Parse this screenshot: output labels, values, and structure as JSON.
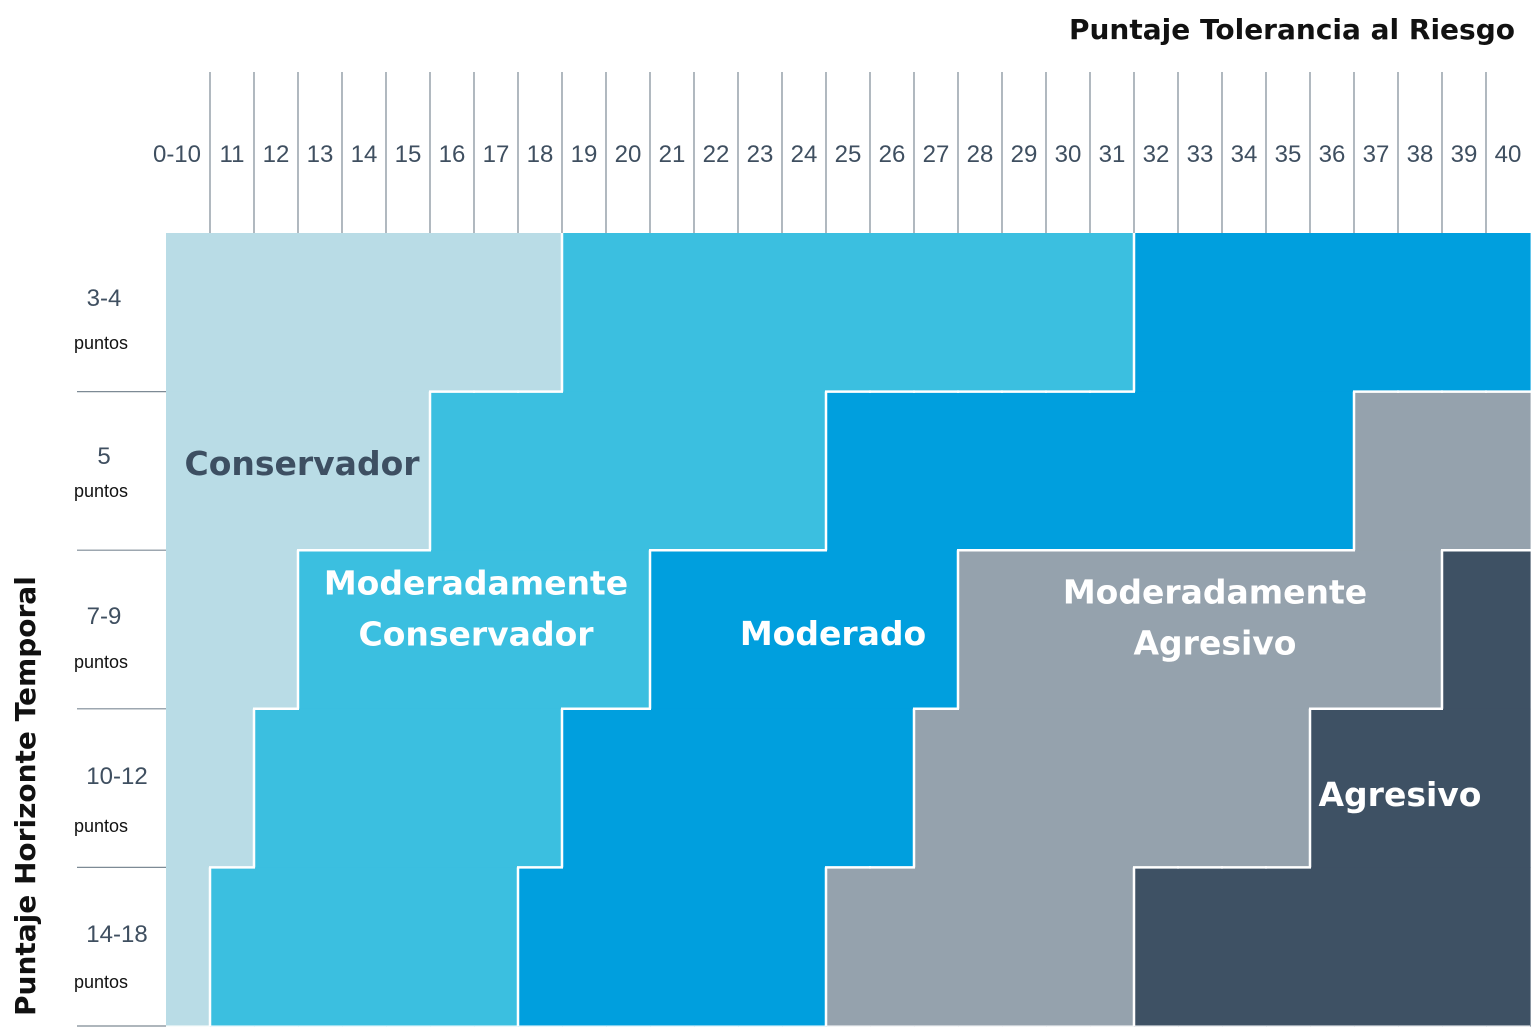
{
  "chart_data": {
    "type": "heatmap",
    "title": "",
    "xlabel": "Puntaje Tolerancia al Riesgo",
    "ylabel": "Puntaje Horizonte Temporal",
    "x_categories": [
      "0-10",
      "11",
      "12",
      "13",
      "14",
      "15",
      "16",
      "17",
      "18",
      "19",
      "20",
      "21",
      "22",
      "23",
      "24",
      "25",
      "26",
      "27",
      "28",
      "29",
      "30",
      "31",
      "32",
      "33",
      "34",
      "35",
      "36",
      "37",
      "38",
      "39",
      "40"
    ],
    "y_categories": [
      {
        "value": "3-4",
        "unit": "puntos"
      },
      {
        "value": "5",
        "unit": "puntos"
      },
      {
        "value": "7-9",
        "unit": "puntos"
      },
      {
        "value": "10-12",
        "unit": "puntos"
      },
      {
        "value": "14-18",
        "unit": "puntos"
      }
    ],
    "zones": [
      {
        "name": "Conservador",
        "lines": [
          "Conservador"
        ],
        "color": "#b9dce6",
        "text_color": "#3d4f62"
      },
      {
        "name": "Moderadamente Conservador",
        "lines": [
          "Moderadamente",
          "Conservador"
        ],
        "color": "#3bbfe0",
        "text_color": "#ffffff"
      },
      {
        "name": "Moderado",
        "lines": [
          "Moderado"
        ],
        "color": "#009fde",
        "text_color": "#ffffff"
      },
      {
        "name": "Moderadamente Agresivo",
        "lines": [
          "Moderadamente",
          "Agresivo"
        ],
        "color": "#95a2ad",
        "text_color": "#ffffff"
      },
      {
        "name": "Agresivo",
        "lines": [
          "Agresivo"
        ],
        "color": "#3e5164",
        "text_color": "#ffffff"
      }
    ],
    "matrix": [
      [
        0,
        0,
        0,
        0,
        0,
        0,
        0,
        0,
        0,
        1,
        1,
        1,
        1,
        1,
        1,
        1,
        1,
        1,
        1,
        1,
        1,
        1,
        2,
        2,
        2,
        2,
        2,
        2,
        2,
        2,
        2
      ],
      [
        0,
        0,
        0,
        0,
        0,
        0,
        1,
        1,
        1,
        1,
        1,
        1,
        1,
        1,
        1,
        2,
        2,
        2,
        2,
        2,
        2,
        2,
        2,
        2,
        2,
        2,
        2,
        3,
        3,
        3,
        3
      ],
      [
        0,
        0,
        0,
        1,
        1,
        1,
        1,
        1,
        1,
        1,
        1,
        2,
        2,
        2,
        2,
        2,
        2,
        2,
        3,
        3,
        3,
        3,
        3,
        3,
        3,
        3,
        3,
        3,
        3,
        4,
        4
      ],
      [
        0,
        0,
        1,
        1,
        1,
        1,
        1,
        1,
        1,
        2,
        2,
        2,
        2,
        2,
        2,
        2,
        2,
        3,
        3,
        3,
        3,
        3,
        3,
        3,
        3,
        3,
        4,
        4,
        4,
        4,
        4
      ],
      [
        0,
        1,
        1,
        1,
        1,
        1,
        1,
        1,
        2,
        2,
        2,
        2,
        2,
        2,
        2,
        3,
        3,
        3,
        3,
        3,
        3,
        3,
        4,
        4,
        4,
        4,
        4,
        4,
        4,
        4,
        4
      ]
    ]
  }
}
